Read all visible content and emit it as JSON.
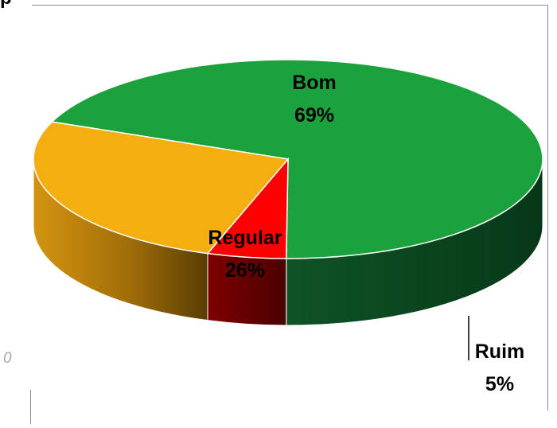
{
  "page": {
    "corner_title_fragment": "p",
    "stray_axis_label": "0"
  },
  "chart_data": {
    "type": "pie",
    "title": "",
    "style": "3d",
    "slices": [
      {
        "label": "Bom",
        "value": 69,
        "percent_label": "69%",
        "color": "#1ca23c",
        "side_color": "#0d4d21"
      },
      {
        "label": "Ruim",
        "value": 5,
        "percent_label": "5%",
        "color": "#ff0000",
        "side_color": "#7a0000"
      },
      {
        "label": "Regular",
        "value": 26,
        "percent_label": "26%",
        "color": "#f5ae0f",
        "side_color": "#8a5f06"
      }
    ],
    "legend": "none",
    "data_labels": "category and percentage"
  }
}
